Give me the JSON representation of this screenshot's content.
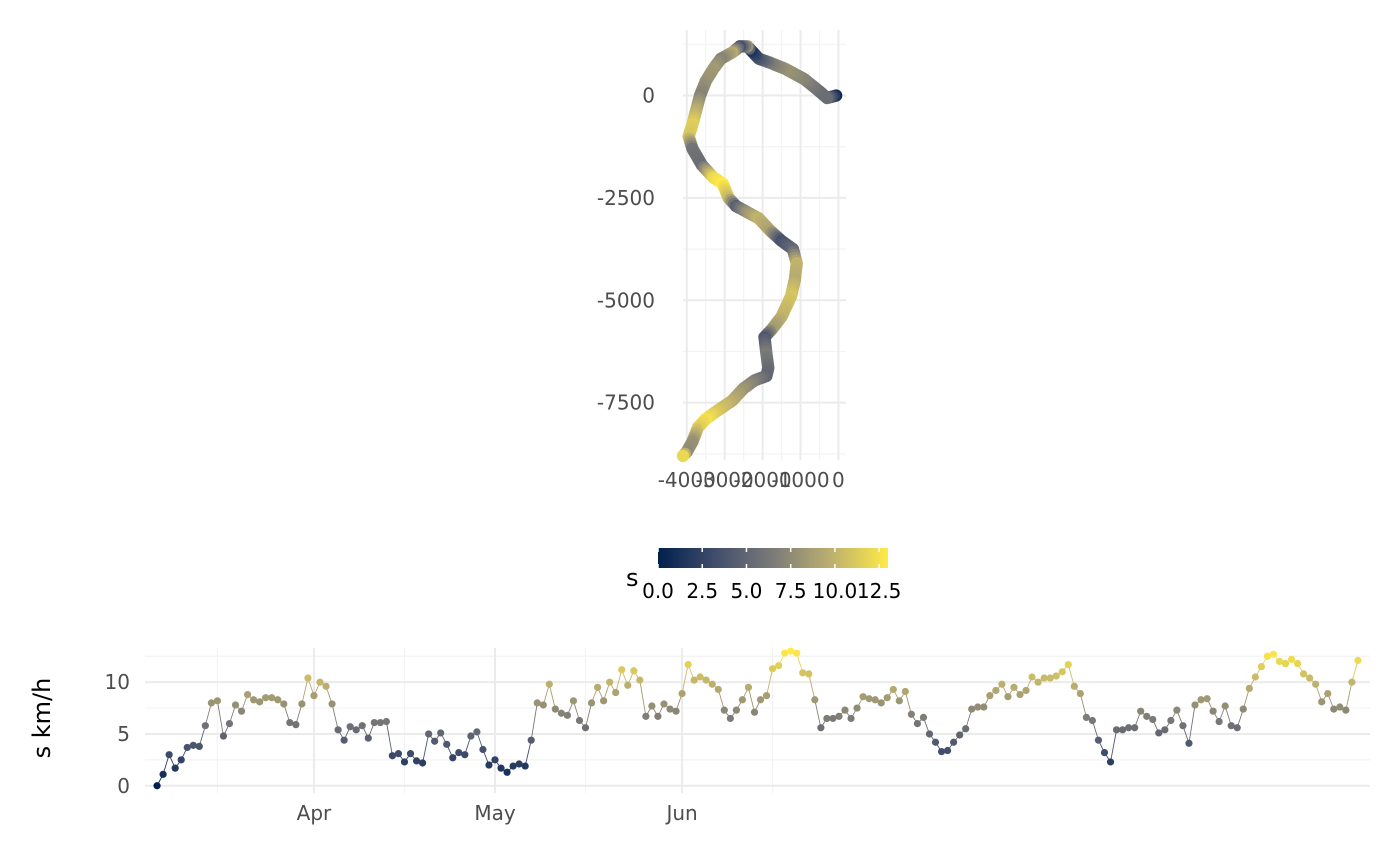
{
  "chart_data": [
    {
      "type": "scatter",
      "title": "",
      "xlabel": "",
      "ylabel": "",
      "xlim": [
        -4100,
        200
      ],
      "ylim": [
        -8900,
        1600
      ],
      "x_ticks": [
        -4000,
        -3000,
        -2000,
        -1000,
        0
      ],
      "x_tick_labels": [
        "-4000",
        "-3000",
        "-2000",
        "-1000",
        "0"
      ],
      "y_ticks": [
        0,
        -2500,
        -5000,
        -7500
      ],
      "y_tick_labels": [
        "0",
        "-2500",
        "-5000",
        "-7500"
      ],
      "grid": true,
      "color_variable": "s",
      "path": [
        [
          -60,
          0,
          0.8
        ],
        [
          -300,
          -60,
          5.5
        ],
        [
          -500,
          100,
          5.5
        ],
        [
          -900,
          400,
          7.0
        ],
        [
          -1400,
          650,
          8.0
        ],
        [
          -1800,
          800,
          6.5
        ],
        [
          -2100,
          900,
          4.0
        ],
        [
          -2300,
          1100,
          1.5
        ],
        [
          -2400,
          1200,
          8.0
        ],
        [
          -2600,
          1200,
          3.5
        ],
        [
          -2800,
          1050,
          9.5
        ],
        [
          -3100,
          900,
          7.0
        ],
        [
          -3300,
          650,
          8.5
        ],
        [
          -3500,
          350,
          8.0
        ],
        [
          -3650,
          0,
          7.0
        ],
        [
          -3750,
          -350,
          9.5
        ],
        [
          -3850,
          -700,
          11.5
        ],
        [
          -3950,
          -1000,
          11.0
        ],
        [
          -3850,
          -1300,
          6.0
        ],
        [
          -3600,
          -1700,
          5.5
        ],
        [
          -3300,
          -2000,
          12.0
        ],
        [
          -3050,
          -2150,
          13.0
        ],
        [
          -2900,
          -2500,
          10.5
        ],
        [
          -2700,
          -2700,
          4.5
        ],
        [
          -2400,
          -2850,
          8.0
        ],
        [
          -2100,
          -3000,
          10.0
        ],
        [
          -1800,
          -3300,
          9.0
        ],
        [
          -1500,
          -3550,
          3.5
        ],
        [
          -1200,
          -3750,
          5.0
        ],
        [
          -1100,
          -4100,
          10.0
        ],
        [
          -1150,
          -4500,
          9.5
        ],
        [
          -1250,
          -4900,
          11.0
        ],
        [
          -1500,
          -5400,
          10.0
        ],
        [
          -1750,
          -5700,
          8.5
        ],
        [
          -1950,
          -5900,
          4.0
        ],
        [
          -1900,
          -6300,
          6.5
        ],
        [
          -1850,
          -6650,
          5.5
        ],
        [
          -1900,
          -6850,
          5.0
        ],
        [
          -2200,
          -6950,
          6.5
        ],
        [
          -2500,
          -7150,
          8.0
        ],
        [
          -2800,
          -7450,
          9.5
        ],
        [
          -3200,
          -7700,
          11.0
        ],
        [
          -3500,
          -7900,
          12.5
        ],
        [
          -3700,
          -8100,
          11.5
        ],
        [
          -3850,
          -8450,
          8.0
        ],
        [
          -4000,
          -8700,
          7.5
        ],
        [
          -4100,
          -8800,
          12.0
        ]
      ]
    },
    {
      "type": "line",
      "title": "",
      "xlabel": "",
      "ylabel": "s km/h",
      "x_start": "2020-03-06",
      "x_ticks": [
        "2020-04-01",
        "2020-05-01",
        "2020-06-01"
      ],
      "x_tick_labels": [
        "Apr",
        "May",
        "Jun"
      ],
      "y_ticks": [
        0,
        5,
        10
      ],
      "y_tick_labels": [
        "0",
        "5",
        "10"
      ],
      "ylim": [
        -0.7,
        13.3
      ],
      "grid": true,
      "values": [
        0.0,
        1.1,
        3.0,
        1.7,
        2.5,
        3.7,
        3.9,
        3.8,
        5.8,
        8.0,
        8.2,
        4.8,
        6.0,
        7.8,
        7.2,
        8.8,
        8.3,
        8.1,
        8.5,
        8.5,
        8.3,
        7.9,
        6.1,
        5.9,
        7.9,
        10.4,
        8.7,
        10.0,
        9.6,
        7.9,
        5.4,
        4.4,
        5.7,
        5.4,
        5.8,
        4.6,
        6.1,
        6.1,
        6.2,
        2.9,
        3.1,
        2.3,
        3.1,
        2.4,
        2.2,
        5.0,
        4.3,
        5.1,
        4.0,
        2.7,
        3.2,
        3.0,
        4.8,
        5.2,
        3.5,
        2.0,
        2.5,
        1.7,
        1.3,
        1.9,
        2.1,
        1.9,
        4.4,
        8.0,
        7.8,
        9.8,
        7.4,
        7.0,
        6.8,
        8.2,
        6.3,
        5.6,
        8.0,
        9.5,
        8.2,
        10.0,
        9.0,
        11.2,
        9.7,
        11.1,
        10.2,
        6.7,
        7.7,
        6.7,
        7.9,
        7.4,
        7.2,
        8.9,
        11.7,
        10.2,
        10.5,
        10.2,
        9.8,
        9.3,
        7.3,
        6.5,
        7.3,
        8.3,
        9.5,
        7.1,
        8.3,
        8.7,
        11.3,
        11.6,
        12.8,
        13.0,
        12.8,
        10.9,
        10.8,
        8.3,
        5.6,
        6.5,
        6.5,
        6.7,
        7.3,
        6.5,
        7.5,
        8.6,
        8.4,
        8.3,
        8.0,
        8.5,
        9.3,
        8.2,
        9.1,
        6.9,
        6.0,
        6.6,
        5.0,
        4.2,
        3.3,
        3.4,
        4.2,
        4.9,
        5.5,
        7.4,
        7.6,
        7.6,
        8.7,
        9.2,
        9.8,
        8.6,
        9.5,
        8.8,
        9.2,
        10.5,
        10.0,
        10.4,
        10.4,
        10.6,
        11.0,
        11.7,
        9.6,
        8.9,
        6.6,
        6.3,
        4.4,
        3.2,
        2.3,
        5.4,
        5.4,
        5.6,
        5.6,
        7.2,
        6.7,
        6.4,
        5.1,
        5.4,
        6.3,
        7.3,
        5.8,
        4.1,
        7.8,
        8.3,
        8.4,
        7.2,
        6.2,
        7.7,
        5.8,
        5.6,
        7.4,
        9.4,
        10.5,
        11.5,
        12.5,
        12.7,
        12.0,
        11.8,
        12.2,
        11.8,
        10.8,
        10.4,
        9.8,
        8.1,
        8.9,
        7.4,
        7.6,
        7.3,
        10.0,
        12.1
      ]
    }
  ],
  "legend": {
    "title": "s",
    "colorbar": true,
    "range": [
      0,
      13
    ],
    "tick_values": [
      0,
      2.5,
      5,
      7.5,
      10,
      12.5
    ],
    "tick_labels": [
      "0.0",
      "2.5",
      "5.0",
      "7.5",
      "10.0",
      "12.5"
    ],
    "placement": "between panels, horizontal",
    "colors": [
      "#00204d",
      "#414d6b",
      "#7c7b78",
      "#bcaf6f",
      "#ffea46"
    ]
  }
}
